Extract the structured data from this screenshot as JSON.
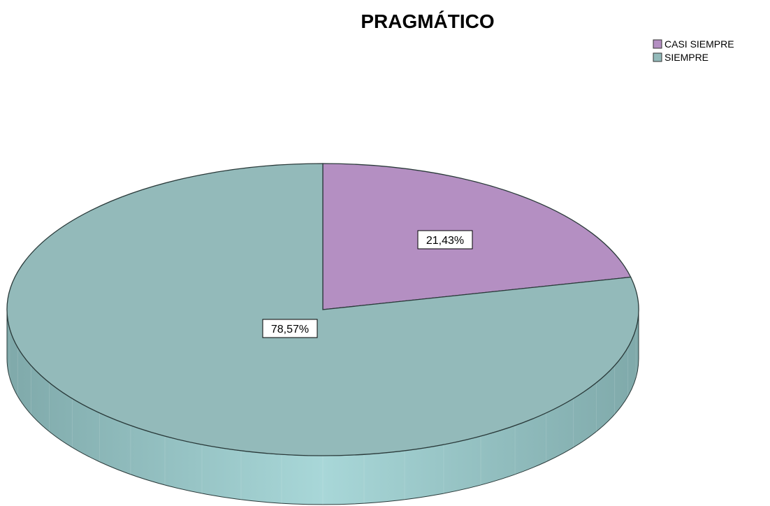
{
  "chart_data": {
    "type": "pie",
    "title": "PRAGMÁTICO",
    "legend_position": "top-right",
    "slices": [
      {
        "label": "CASI SIEMPRE",
        "value": 21.43,
        "display": "21,43%",
        "color": "#B48FC2"
      },
      {
        "label": "SIEMPRE",
        "value": 78.57,
        "display": "78,57%",
        "color": "#93BABA"
      }
    ]
  },
  "colors": {
    "side_face": "#A3D2D3",
    "side_face_dark": "#8FBDBE",
    "outline": "#2A3A3A"
  }
}
